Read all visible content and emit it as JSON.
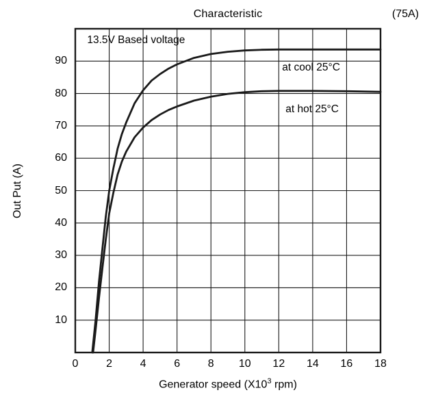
{
  "chart_data": {
    "type": "line",
    "title": "Characteristic",
    "corner_label": "(75A)",
    "ylabel": "Out Put (A)",
    "xlabel_prefix": "Generator speed (X10",
    "xlabel_sup": "3",
    "xlabel_suffix": " rpm)",
    "xlim": [
      0,
      18
    ],
    "ylim": [
      0,
      100
    ],
    "x_ticks": [
      0,
      2,
      4,
      6,
      8,
      10,
      12,
      14,
      16,
      18
    ],
    "y_ticks": [
      10,
      20,
      30,
      40,
      50,
      60,
      70,
      80,
      90
    ],
    "grid": true,
    "line_color": "#1a1a1a",
    "grid_color": "#1a1a1a",
    "annotations": [
      {
        "text": "13.5V Based voltage",
        "x": 0.7,
        "y": 96.5
      }
    ],
    "series": [
      {
        "name": "at cool 25°C",
        "label_pos": {
          "x": 12.2,
          "y": 88.0
        },
        "points": [
          [
            1.0,
            0
          ],
          [
            1.2,
            10
          ],
          [
            1.4,
            22
          ],
          [
            1.6,
            32
          ],
          [
            1.8,
            42
          ],
          [
            2.0,
            50
          ],
          [
            2.25,
            57
          ],
          [
            2.5,
            63
          ],
          [
            2.75,
            67.5
          ],
          [
            3.0,
            71
          ],
          [
            3.5,
            77
          ],
          [
            4.0,
            81
          ],
          [
            4.5,
            84
          ],
          [
            5.0,
            86
          ],
          [
            5.5,
            87.7
          ],
          [
            6.0,
            89
          ],
          [
            7.0,
            91
          ],
          [
            8.0,
            92.2
          ],
          [
            9.0,
            92.9
          ],
          [
            10.0,
            93.3
          ],
          [
            11.0,
            93.5
          ],
          [
            12.0,
            93.6
          ],
          [
            14.0,
            93.6
          ],
          [
            16.0,
            93.6
          ],
          [
            18.0,
            93.6
          ]
        ]
      },
      {
        "name": "at hot 25°C",
        "label_pos": {
          "x": 12.4,
          "y": 75.0
        },
        "points": [
          [
            1.05,
            0
          ],
          [
            1.2,
            7
          ],
          [
            1.4,
            17
          ],
          [
            1.6,
            26
          ],
          [
            1.8,
            35
          ],
          [
            2.0,
            43
          ],
          [
            2.25,
            49.5
          ],
          [
            2.5,
            55
          ],
          [
            2.75,
            59
          ],
          [
            3.0,
            62
          ],
          [
            3.5,
            66.5
          ],
          [
            4.0,
            69.5
          ],
          [
            4.5,
            71.8
          ],
          [
            5.0,
            73.5
          ],
          [
            5.5,
            74.9
          ],
          [
            6.0,
            76
          ],
          [
            7.0,
            77.8
          ],
          [
            8.0,
            79
          ],
          [
            9.0,
            79.9
          ],
          [
            10.0,
            80.4
          ],
          [
            11.0,
            80.7
          ],
          [
            12.0,
            80.8
          ],
          [
            14.0,
            80.8
          ],
          [
            16.0,
            80.7
          ],
          [
            18.0,
            80.5
          ]
        ]
      }
    ]
  }
}
